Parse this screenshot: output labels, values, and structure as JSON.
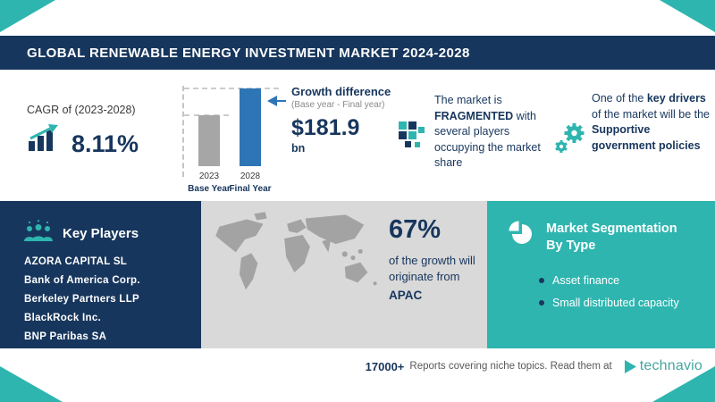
{
  "colors": {
    "navy": "#17365d",
    "teal": "#2fb5af",
    "bar_blue": "#2e75b6",
    "bar_gray": "#a6a6a6",
    "panel_gray": "#d9d9d9"
  },
  "header": {
    "title": "GLOBAL RENEWABLE ENERGY INVESTMENT MARKET 2024-2028"
  },
  "cagr": {
    "label": "CAGR of (2023-2028)",
    "value": "8.11%"
  },
  "chart_data": {
    "type": "bar",
    "categories": [
      "2023",
      "2028"
    ],
    "category_sublabels": [
      "Base Year",
      "Final Year"
    ],
    "values_relative": [
      0.655,
      1.0
    ],
    "series_colors": [
      "#a6a6a6",
      "#2e75b6"
    ],
    "annotation": {
      "title": "Growth difference",
      "subtitle": "(Base year - Final year)",
      "value": "$181.9",
      "unit": "bn"
    }
  },
  "fragmented": {
    "t1": "The market is ",
    "keyword": "FRAGMENTED",
    "t2": " with several players occupying the market share"
  },
  "drivers": {
    "t1": "One of the ",
    "t2": "key drivers",
    "t3": " of the market will be the ",
    "t4": "Supportive government policies"
  },
  "key_players": {
    "title": "Key Players",
    "items": [
      "AZORA CAPITAL SL",
      "Bank of America Corp.",
      "Berkeley Partners LLP",
      "BlackRock Inc.",
      "BNP Paribas SA"
    ]
  },
  "apac": {
    "value": "67%",
    "t1": "of the growth will originate from",
    "region": "APAC"
  },
  "segmentation": {
    "title": "Market Segmentation By Type",
    "items": [
      "Asset finance",
      "Small distributed capacity"
    ]
  },
  "footer": {
    "count": "17000+",
    "text": "Reports covering niche topics. Read them at",
    "brand": "technavio"
  }
}
